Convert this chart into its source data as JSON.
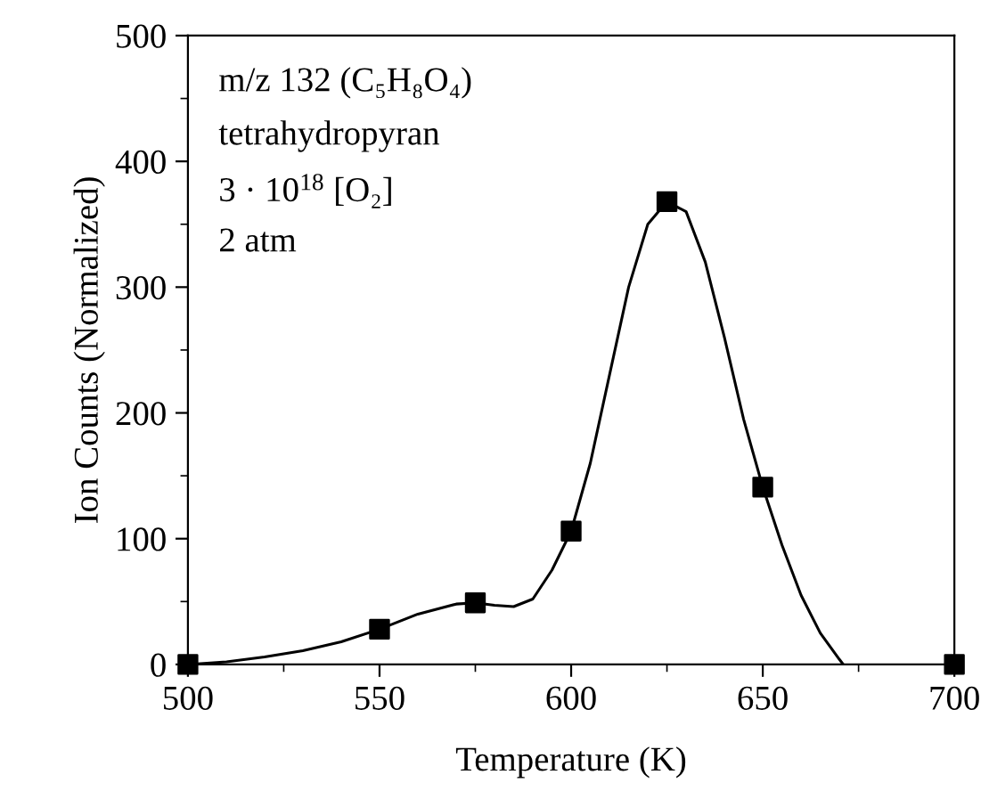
{
  "chart_data": {
    "type": "scatter",
    "xlabel": "Temperature (K)",
    "ylabel": "Ion Counts (Normalized)",
    "annotations": [
      "m/z 132 (C₅H₈O₄)",
      "tetrahydropyran",
      "3 · 10$^{18}$ [O₂]",
      "2 atm"
    ],
    "xlim": [
      500,
      700
    ],
    "xticks": [
      500,
      550,
      600,
      650,
      700
    ],
    "ylim": [
      0,
      500
    ],
    "yticks": [
      0,
      100,
      200,
      300,
      400,
      500
    ],
    "grid": false,
    "legend": false,
    "series": [
      {
        "color": "#000000",
        "marker": "square",
        "x": [
          500,
          550,
          575,
          600,
          625,
          650,
          700
        ],
        "values": [
          0,
          28,
          49,
          106,
          368,
          141,
          0
        ]
      },
      {
        "type": "line",
        "color": "#000000",
        "marker": "none",
        "line_style": "solid",
        "x": [
          500,
          510,
          520,
          530,
          540,
          550,
          560,
          570,
          575,
          580,
          585,
          590,
          595,
          600,
          605,
          610,
          615,
          620,
          625,
          630,
          635,
          640,
          645,
          650,
          655,
          660,
          665,
          670,
          671
        ],
        "values": [
          0,
          2,
          6,
          11,
          18,
          28,
          40,
          48,
          49,
          47,
          46,
          52,
          75,
          106,
          160,
          230,
          300,
          350,
          368,
          360,
          320,
          260,
          195,
          141,
          95,
          55,
          25,
          4,
          0
        ]
      }
    ]
  }
}
